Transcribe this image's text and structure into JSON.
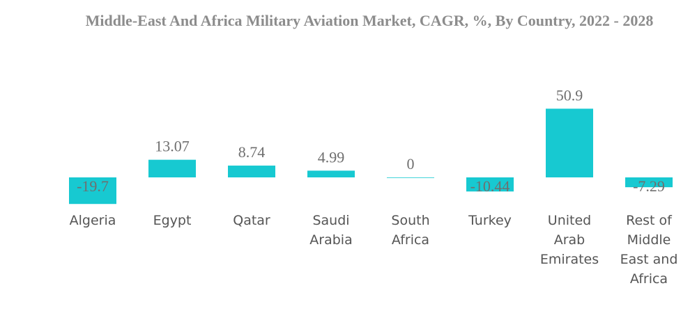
{
  "chart_data": {
    "type": "bar",
    "title": "Middle-East And Africa Military Aviation Market, CAGR, %, By Country, 2022 - 2028",
    "categories": [
      "Algeria",
      "Egypt",
      "Qatar",
      "Saudi Arabia",
      "South Africa",
      "Turkey",
      "United Arab Emirates",
      "Rest of Middle East and Africa"
    ],
    "category_lines": [
      [
        "Algeria"
      ],
      [
        "Egypt"
      ],
      [
        "Qatar"
      ],
      [
        "Saudi",
        "Arabia"
      ],
      [
        "South",
        "Africa"
      ],
      [
        "Turkey"
      ],
      [
        "United",
        "Arab",
        "Emirates"
      ],
      [
        "Rest of",
        "Middle",
        "East and",
        "Africa"
      ]
    ],
    "values": [
      -19.7,
      13.07,
      8.74,
      4.99,
      0,
      -10.44,
      50.9,
      -7.29
    ],
    "value_labels": [
      "-19.7",
      "13.07",
      "8.74",
      "4.99",
      "0",
      "-10.44",
      "50.9",
      "-7.29"
    ],
    "bar_color": "#17c9d1",
    "xlabel": "",
    "ylabel": "",
    "grid": false,
    "legend": "none"
  }
}
